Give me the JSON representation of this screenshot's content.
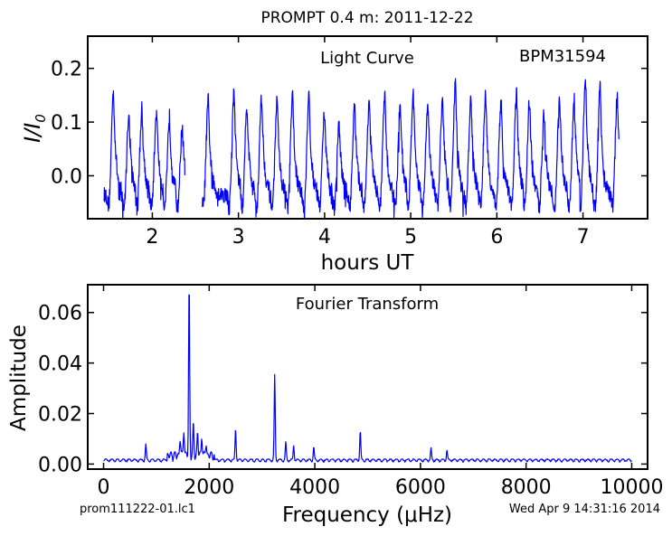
{
  "figure": {
    "title": "PROMPT 0.4 m:  2011-12-22",
    "footer_left": "prom111222-01.lc1",
    "footer_right": "Wed Apr  9 14:31:16 2014"
  },
  "chart_data": [
    {
      "type": "line",
      "panel": "top",
      "annotation": "Light Curve",
      "object_label": "BPM31594",
      "xlabel": "hours UT",
      "ylabel_main": "I/I",
      "ylabel_sub": "0",
      "xlim": [
        1.25,
        7.75
      ],
      "ylim": [
        -0.08,
        0.26
      ],
      "x_ticks": [
        2,
        3,
        4,
        5,
        6,
        7
      ],
      "x_tick_labels": [
        "2",
        "3",
        "4",
        "5",
        "6",
        "7"
      ],
      "y_ticks": [
        0.0,
        0.1,
        0.2
      ],
      "y_tick_labels": [
        "0.0",
        "0.1",
        "0.2"
      ],
      "segments": [
        [
          1.44,
          2.38
        ],
        [
          2.58,
          7.42
        ]
      ],
      "pulse_peaks": [
        {
          "x": 1.55,
          "y": 0.16
        },
        {
          "x": 1.73,
          "y": 0.12
        },
        {
          "x": 1.88,
          "y": 0.125
        },
        {
          "x": 2.05,
          "y": 0.12
        },
        {
          "x": 2.2,
          "y": 0.11
        },
        {
          "x": 2.35,
          "y": 0.09
        },
        {
          "x": 2.65,
          "y": 0.14
        },
        {
          "x": 2.95,
          "y": 0.155
        },
        {
          "x": 3.1,
          "y": 0.135
        },
        {
          "x": 3.27,
          "y": 0.148
        },
        {
          "x": 3.45,
          "y": 0.14
        },
        {
          "x": 3.63,
          "y": 0.148
        },
        {
          "x": 3.82,
          "y": 0.15
        },
        {
          "x": 4.0,
          "y": 0.12
        },
        {
          "x": 4.17,
          "y": 0.098
        },
        {
          "x": 4.35,
          "y": 0.13
        },
        {
          "x": 4.52,
          "y": 0.145
        },
        {
          "x": 4.7,
          "y": 0.15
        },
        {
          "x": 4.88,
          "y": 0.135
        },
        {
          "x": 5.03,
          "y": 0.155
        },
        {
          "x": 5.2,
          "y": 0.14
        },
        {
          "x": 5.37,
          "y": 0.148
        },
        {
          "x": 5.52,
          "y": 0.172
        },
        {
          "x": 5.7,
          "y": 0.145
        },
        {
          "x": 5.87,
          "y": 0.15
        },
        {
          "x": 6.05,
          "y": 0.14
        },
        {
          "x": 6.23,
          "y": 0.155
        },
        {
          "x": 6.38,
          "y": 0.14
        },
        {
          "x": 6.55,
          "y": 0.12
        },
        {
          "x": 6.73,
          "y": 0.148
        },
        {
          "x": 6.9,
          "y": 0.14
        },
        {
          "x": 7.03,
          "y": 0.19
        },
        {
          "x": 7.2,
          "y": 0.165
        },
        {
          "x": 7.4,
          "y": 0.15
        }
      ],
      "baseline": -0.035,
      "trough_min": -0.08,
      "grid": false,
      "color": "#0000ff"
    },
    {
      "type": "line",
      "panel": "bottom",
      "annotation": "Fourier Transform",
      "xlabel": "Frequency (μHz)",
      "ylabel": "Amplitude",
      "xlim": [
        -300,
        10300
      ],
      "ylim": [
        -0.002,
        0.071
      ],
      "x_ticks": [
        0,
        2000,
        4000,
        6000,
        8000,
        10000
      ],
      "x_tick_labels": [
        "0",
        "2000",
        "4000",
        "6000",
        "8000",
        "10000"
      ],
      "y_ticks": [
        0.0,
        0.02,
        0.04,
        0.06
      ],
      "y_tick_labels": [
        "0.00",
        "0.02",
        "0.04",
        "0.06"
      ],
      "x_range": [
        0,
        10000
      ],
      "peaks": [
        {
          "x": 1620,
          "y": 0.068
        },
        {
          "x": 1520,
          "y": 0.011
        },
        {
          "x": 1700,
          "y": 0.012
        },
        {
          "x": 1780,
          "y": 0.009
        },
        {
          "x": 1860,
          "y": 0.008
        },
        {
          "x": 1450,
          "y": 0.007
        },
        {
          "x": 1940,
          "y": 0.005
        },
        {
          "x": 2500,
          "y": 0.0125
        },
        {
          "x": 3240,
          "y": 0.0335
        },
        {
          "x": 3450,
          "y": 0.007
        },
        {
          "x": 3600,
          "y": 0.006
        },
        {
          "x": 3980,
          "y": 0.005
        },
        {
          "x": 4860,
          "y": 0.0115
        },
        {
          "x": 800,
          "y": 0.006
        },
        {
          "x": 6200,
          "y": 0.0045
        },
        {
          "x": 6500,
          "y": 0.004
        }
      ],
      "noise_level": 0.002,
      "grid": false,
      "color": "#0000ff"
    }
  ]
}
